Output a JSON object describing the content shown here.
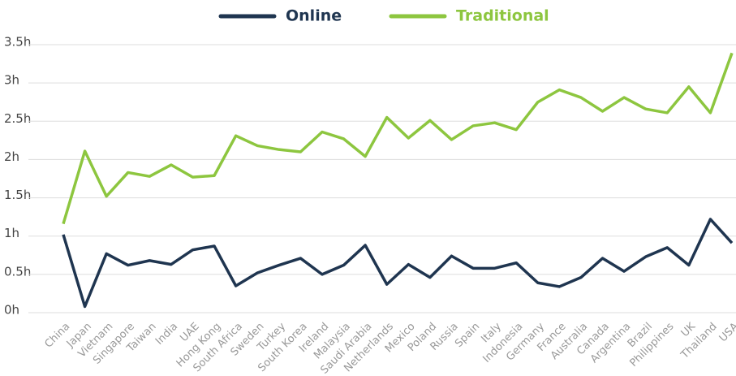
{
  "chart_data": {
    "type": "line",
    "categories": [
      "China",
      "Japan",
      "Vietnam",
      "Singapore",
      "Taiwan",
      "India",
      "UAE",
      "Hong Kong",
      "South Africa",
      "Sweden",
      "Turkey",
      "South Korea",
      "Ireland",
      "Malaysia",
      "Saudi Arabia",
      "Netherlands",
      "Mexico",
      "Poland",
      "Russia",
      "Spain",
      "Italy",
      "Indonesia",
      "Germany",
      "France",
      "Australia",
      "Canada",
      "Argentina",
      "Brazil",
      "Philippines",
      "UK",
      "Thailand",
      "USA"
    ],
    "series": [
      {
        "name": "Online",
        "color": "#1f3550",
        "values": [
          1.02,
          0.08,
          0.77,
          0.62,
          0.68,
          0.63,
          0.82,
          0.87,
          0.35,
          0.52,
          0.62,
          0.71,
          0.5,
          0.62,
          0.88,
          0.37,
          0.63,
          0.46,
          0.74,
          0.58,
          0.58,
          0.65,
          0.39,
          0.34,
          0.46,
          0.71,
          0.54,
          0.73,
          0.85,
          0.62,
          1.22,
          0.91
        ]
      },
      {
        "name": "Traditional",
        "color": "#8dc63f",
        "values": [
          1.16,
          2.11,
          1.52,
          1.83,
          1.78,
          1.93,
          1.77,
          1.79,
          2.31,
          2.18,
          2.13,
          2.1,
          2.36,
          2.27,
          2.04,
          2.55,
          2.28,
          2.51,
          2.26,
          2.44,
          2.48,
          2.39,
          2.75,
          2.91,
          2.81,
          2.63,
          2.81,
          2.66,
          2.61,
          2.95,
          2.61,
          3.39
        ]
      }
    ],
    "ylim": [
      0,
      3.5
    ],
    "yticks": [
      {
        "value": 0,
        "label": "0h"
      },
      {
        "value": 0.5,
        "label": "0.5h"
      },
      {
        "value": 1,
        "label": "1h"
      },
      {
        "value": 1.5,
        "label": "1.5h"
      },
      {
        "value": 2,
        "label": "2h"
      },
      {
        "value": 2.5,
        "label": "2.5h"
      },
      {
        "value": 3,
        "label": "3h"
      },
      {
        "value": 3.5,
        "label": "3.5h"
      }
    ],
    "grid": true,
    "legend": "top"
  }
}
